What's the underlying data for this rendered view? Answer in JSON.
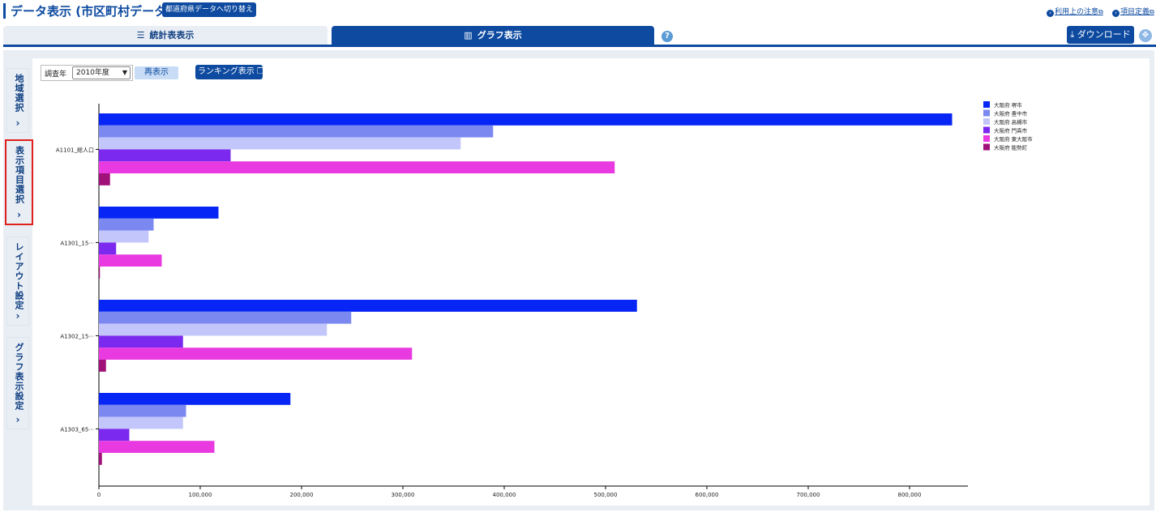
{
  "header": {
    "title": "データ表示 (市区町村データ)",
    "switch_button": "都道府県データへ切り替え",
    "link_notes": "利用上の注意",
    "link_definitions": "項目定義"
  },
  "tabs": {
    "stats": "統計表表示",
    "graph": "グラフ表示"
  },
  "toolbar": {
    "download": "ダウンロード"
  },
  "sidebar": {
    "area": "地域選択",
    "items": "表示項目選択",
    "layout": "レイアウト設定",
    "graph_settings": "グラフ表示設定"
  },
  "controls": {
    "year_label": "調査年",
    "year_value": "2010年度",
    "redraw": "再表示",
    "ranking": "ランキング表示"
  },
  "colors": {
    "primary": "#0d4aa0",
    "highlight": "#e0201a"
  },
  "chart_data": {
    "type": "bar",
    "orientation": "horizontal",
    "categories": [
      "A1101_総人口",
      "A1301_15···",
      "A1302_15···",
      "A1303_65···"
    ],
    "series": [
      {
        "name": "大阪府 堺市",
        "color": "#0726f5",
        "values": [
          842000,
          118000,
          531000,
          189000
        ]
      },
      {
        "name": "大阪府 豊中市",
        "color": "#7b88f0",
        "values": [
          389000,
          54000,
          249000,
          86000
        ]
      },
      {
        "name": "大阪府 高槻市",
        "color": "#c3c6fa",
        "values": [
          357000,
          49000,
          225000,
          83000
        ]
      },
      {
        "name": "大阪府 門真市",
        "color": "#7b29ee",
        "values": [
          130000,
          17000,
          83000,
          30000
        ]
      },
      {
        "name": "大阪府 東大阪市",
        "color": "#e83ae0",
        "values": [
          509000,
          62000,
          309000,
          114000
        ]
      },
      {
        "name": "大阪府 能勢町",
        "color": "#a0117a",
        "values": [
          11000,
          1000,
          7000,
          3000
        ]
      }
    ],
    "x_ticks": [
      "0",
      "100,000",
      "200,000",
      "300,000",
      "400,000",
      "500,000",
      "600,000",
      "700,000",
      "800,000"
    ],
    "xlim": [
      0,
      875000
    ],
    "legend": "top-right",
    "grid": false
  }
}
